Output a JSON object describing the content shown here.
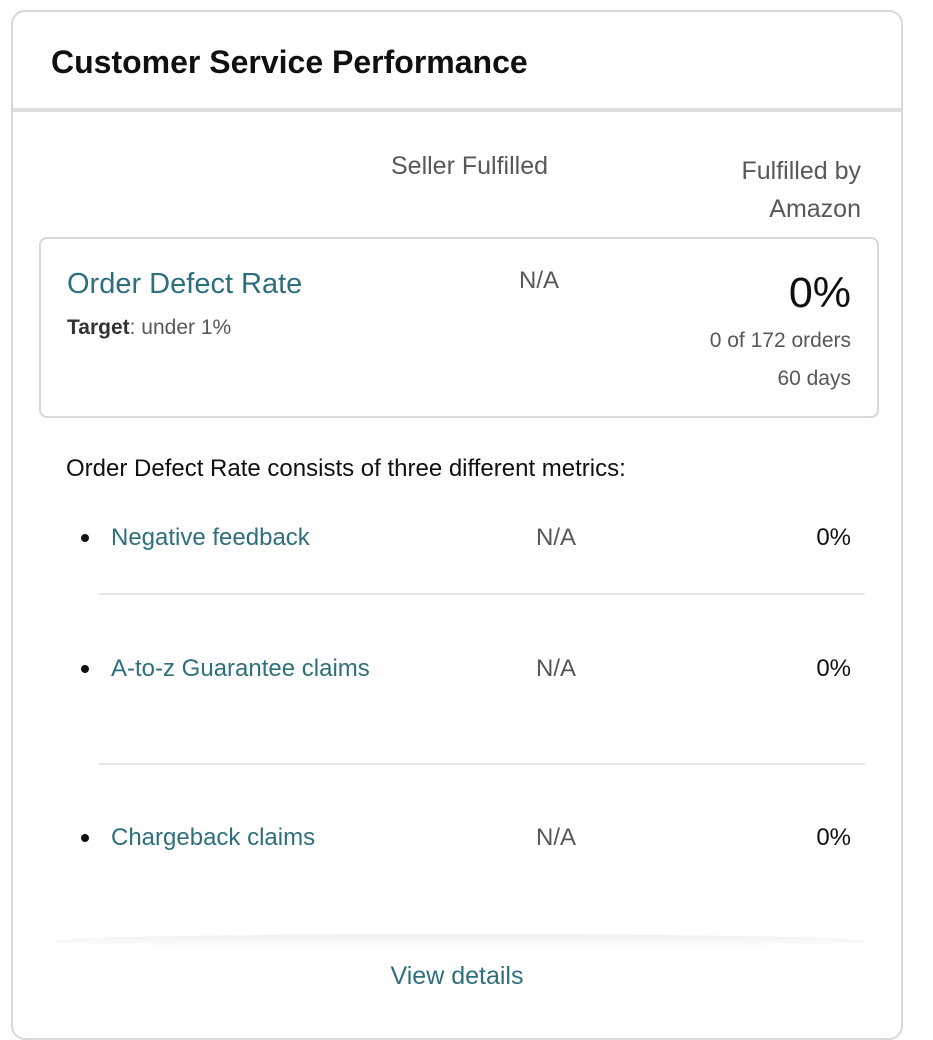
{
  "card": {
    "title": "Customer Service Performance"
  },
  "columns": {
    "seller": "Seller Fulfilled",
    "fba": "Fulfilled by Amazon"
  },
  "odr": {
    "title": "Order Defect Rate",
    "target_label": "Target",
    "target_value": ": under 1%",
    "seller_value": "N/A",
    "fba_value": "0%",
    "fba_orders": "0 of 172 orders",
    "fba_period": "60 days"
  },
  "metrics": {
    "intro": "Order Defect Rate consists of three different metrics:",
    "items": [
      {
        "label": "Negative feedback",
        "seller": "N/A",
        "fba": "0%"
      },
      {
        "label": "A-to-z Guarantee claims",
        "seller": "N/A",
        "fba": "0%"
      },
      {
        "label": "Chargeback claims",
        "seller": "N/A",
        "fba": "0%"
      }
    ]
  },
  "footer": {
    "view_details": "View details"
  },
  "colors": {
    "link": "#2e6f7d",
    "text": "#0f1111",
    "secondary_text": "#565959",
    "border": "#d5d9d9"
  }
}
